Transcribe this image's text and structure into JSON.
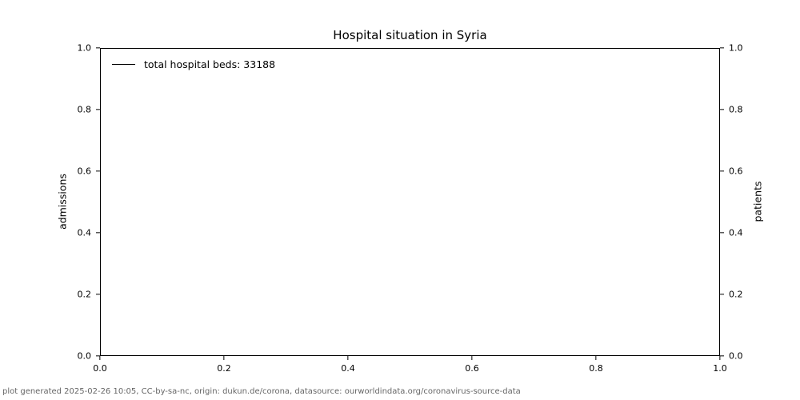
{
  "figure": {
    "title": "Hospital situation in Syria",
    "footer": "plot generated 2025-02-26 10:05, CC-by-sa-nc, origin: dukun.de/corona, datasource: ourworldindata.org/coronavirus-source-data"
  },
  "legend": {
    "position": "upper left",
    "frame": false,
    "entries": [
      {
        "label": "total hospital beds: 33188",
        "color": "#000000",
        "marker": "line"
      }
    ]
  },
  "chart_data": {
    "type": "line",
    "title": "Hospital situation in Syria",
    "xlabel": "",
    "ylabel_left": "admissions",
    "ylabel_right": "patients",
    "xlim": [
      0.0,
      1.0
    ],
    "ylim_left": [
      0.0,
      1.0
    ],
    "ylim_right": [
      0.0,
      1.0
    ],
    "x_ticks": [
      "0.0",
      "0.2",
      "0.4",
      "0.6",
      "0.8",
      "1.0"
    ],
    "y_ticks_left": [
      "0.0",
      "0.2",
      "0.4",
      "0.6",
      "0.8",
      "1.0"
    ],
    "y_ticks_right": [
      "0.0",
      "0.2",
      "0.4",
      "0.6",
      "0.8",
      "1.0"
    ],
    "grid": false,
    "legend_position": "upper left",
    "series": [
      {
        "name": "total hospital beds: 33188",
        "stated_value": 33188,
        "color": "#000000",
        "line_style": "solid",
        "x": [],
        "y": [],
        "note": "no data points are rendered inside the visible 0-1 axis range; plot area is empty"
      }
    ],
    "colors": {
      "axis": "#000000",
      "text": "#000000",
      "footer_text": "#666666",
      "background": "#ffffff"
    }
  }
}
